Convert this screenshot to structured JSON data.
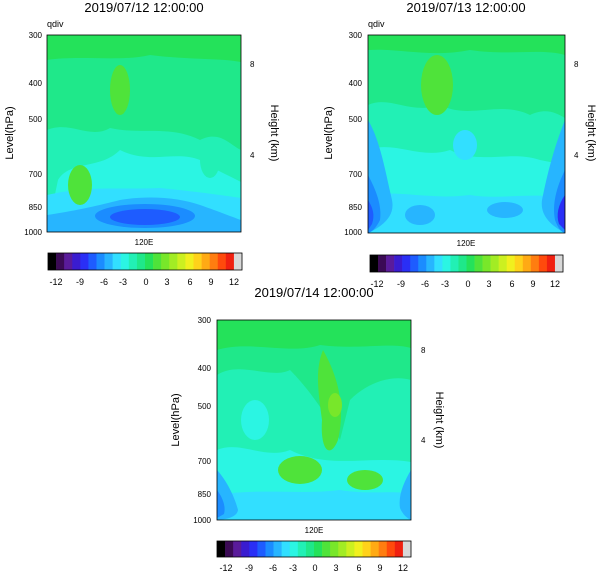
{
  "colors": [
    "#000000",
    "#3b0a55",
    "#5a1b9b",
    "#3a1cd0",
    "#2a2ff6",
    "#1e5cff",
    "#1b8cff",
    "#27b5ff",
    "#32dfff",
    "#2bf5e3",
    "#22f0b5",
    "#1fe88a",
    "#24e25a",
    "#4fe33a",
    "#78e72a",
    "#a2ec24",
    "#ccf020",
    "#f1f01e",
    "#ffd21a",
    "#ffaa14",
    "#ff7d10",
    "#ff4a0c",
    "#f02010",
    "#d8d8d8"
  ],
  "chart_data": [
    {
      "type": "heatmap",
      "variable": "qdiv",
      "title": "2019/07/12 12:00:00",
      "xlabel": "",
      "x_ticks": [
        "120E"
      ],
      "ylabel": "Level(hPa)",
      "y_ticks": [
        "300",
        "400",
        "500",
        "700",
        "850",
        "1000"
      ],
      "y_range": [
        1000,
        300
      ],
      "y2label": "Height (km)",
      "y2_ticks": [
        "8",
        "4"
      ],
      "colorbar_ticks": [
        "-12",
        "-9",
        "-6",
        "-3",
        "0",
        "3",
        "6",
        "9",
        "12"
      ],
      "colorbar_range": [
        -12,
        12
      ]
    },
    {
      "type": "heatmap",
      "variable": "qdiv",
      "title": "2019/07/13 12:00:00",
      "xlabel": "",
      "x_ticks": [
        "120E"
      ],
      "ylabel": "Level(hPa)",
      "y_ticks": [
        "300",
        "400",
        "500",
        "700",
        "850",
        "1000"
      ],
      "y_range": [
        1000,
        300
      ],
      "y2label": "Height (km)",
      "y2_ticks": [
        "8",
        "4"
      ],
      "colorbar_ticks": [
        "-12",
        "-9",
        "-6",
        "-3",
        "0",
        "3",
        "6",
        "9",
        "12"
      ],
      "colorbar_range": [
        -12,
        12
      ]
    },
    {
      "type": "heatmap",
      "variable": "qdiv",
      "title": "2019/07/14 12:00:00",
      "xlabel": "",
      "x_ticks": [
        "120E"
      ],
      "ylabel": "Level(hPa)",
      "y_ticks": [
        "300",
        "400",
        "500",
        "700",
        "850",
        "1000"
      ],
      "y_range": [
        1000,
        300
      ],
      "y2label": "Height (km)",
      "y2_ticks": [
        "8",
        "4"
      ],
      "colorbar_ticks": [
        "-12",
        "-9",
        "-6",
        "-3",
        "0",
        "3",
        "6",
        "9",
        "12"
      ],
      "colorbar_range": [
        -12,
        12
      ]
    }
  ]
}
